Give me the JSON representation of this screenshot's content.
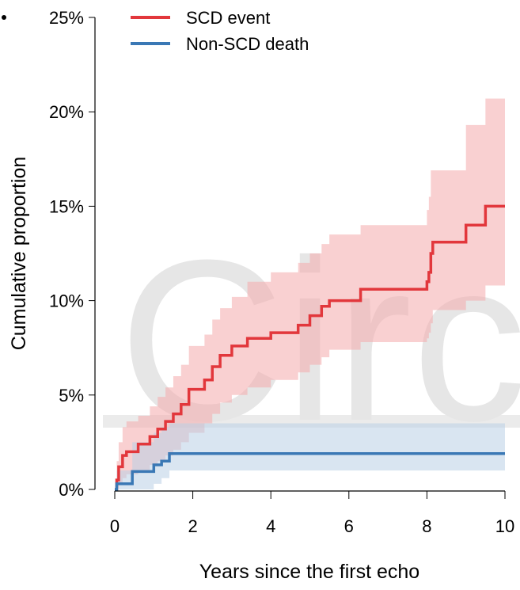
{
  "chart_data": {
    "type": "step",
    "watermark": "Circu",
    "x_label": "Years since the first echo",
    "y_label": "Cumulative proportion",
    "xlim": [
      0,
      10
    ],
    "xticks": [
      0,
      2,
      4,
      6,
      8,
      10
    ],
    "ylim": [
      0,
      25
    ],
    "yticks": [
      {
        "value": 0,
        "label": "0%"
      },
      {
        "value": 5,
        "label": "5%"
      },
      {
        "value": 10,
        "label": "10%"
      },
      {
        "value": 15,
        "label": "15%"
      },
      {
        "value": 20,
        "label": "20%"
      },
      {
        "value": 25,
        "label": "25%"
      }
    ],
    "legend": "top-left",
    "series": [
      {
        "name": "SCD event",
        "color": "#e2373c",
        "band_color": "#f4a9ac",
        "x": [
          0,
          0.05,
          0.1,
          0.2,
          0.3,
          0.6,
          0.9,
          1.1,
          1.3,
          1.5,
          1.7,
          1.9,
          2.3,
          2.5,
          2.7,
          3.0,
          3.4,
          4.0,
          4.7,
          5.0,
          5.3,
          5.5,
          6.3,
          8.0,
          8.05,
          8.1,
          8.15,
          9.0,
          9.5,
          10
        ],
        "values": [
          0,
          0.5,
          1.2,
          1.8,
          2.0,
          2.4,
          2.8,
          3.2,
          3.6,
          4.0,
          4.5,
          5.3,
          5.8,
          6.5,
          7.1,
          7.6,
          8.0,
          8.3,
          8.7,
          9.2,
          9.7,
          10.0,
          10.6,
          11.0,
          11.5,
          12.5,
          13.1,
          14.0,
          15.0,
          15.0
        ],
        "lower": [
          0,
          0.1,
          0.3,
          0.6,
          0.8,
          1.0,
          1.3,
          1.5,
          1.8,
          2.1,
          2.5,
          3.0,
          3.5,
          4.0,
          4.6,
          5.0,
          5.4,
          5.8,
          6.2,
          6.6,
          7.0,
          7.4,
          7.8,
          8.0,
          8.3,
          8.8,
          9.5,
          10.0,
          10.8,
          10.8
        ],
        "upper": [
          0,
          1.5,
          2.5,
          3.3,
          3.6,
          3.9,
          4.4,
          4.9,
          5.4,
          6.0,
          6.6,
          7.6,
          8.2,
          9.0,
          9.6,
          10.2,
          11.0,
          11.5,
          12.0,
          12.5,
          13.0,
          13.5,
          14.0,
          14.8,
          15.5,
          16.9,
          16.9,
          19.3,
          20.7,
          20.7
        ]
      },
      {
        "name": "Non-SCD death",
        "color": "#3a78b5",
        "band_color": "#b9d0e6",
        "x": [
          0,
          0.05,
          0.45,
          1.0,
          1.2,
          1.4,
          10
        ],
        "values": [
          0,
          0.3,
          0.95,
          1.3,
          1.5,
          1.9,
          1.9
        ],
        "lower": [
          0,
          0,
          0,
          0.3,
          0.6,
          1.0,
          1.0
        ],
        "upper": [
          0,
          1.0,
          2.5,
          3.0,
          3.3,
          3.5,
          3.5
        ]
      }
    ]
  }
}
